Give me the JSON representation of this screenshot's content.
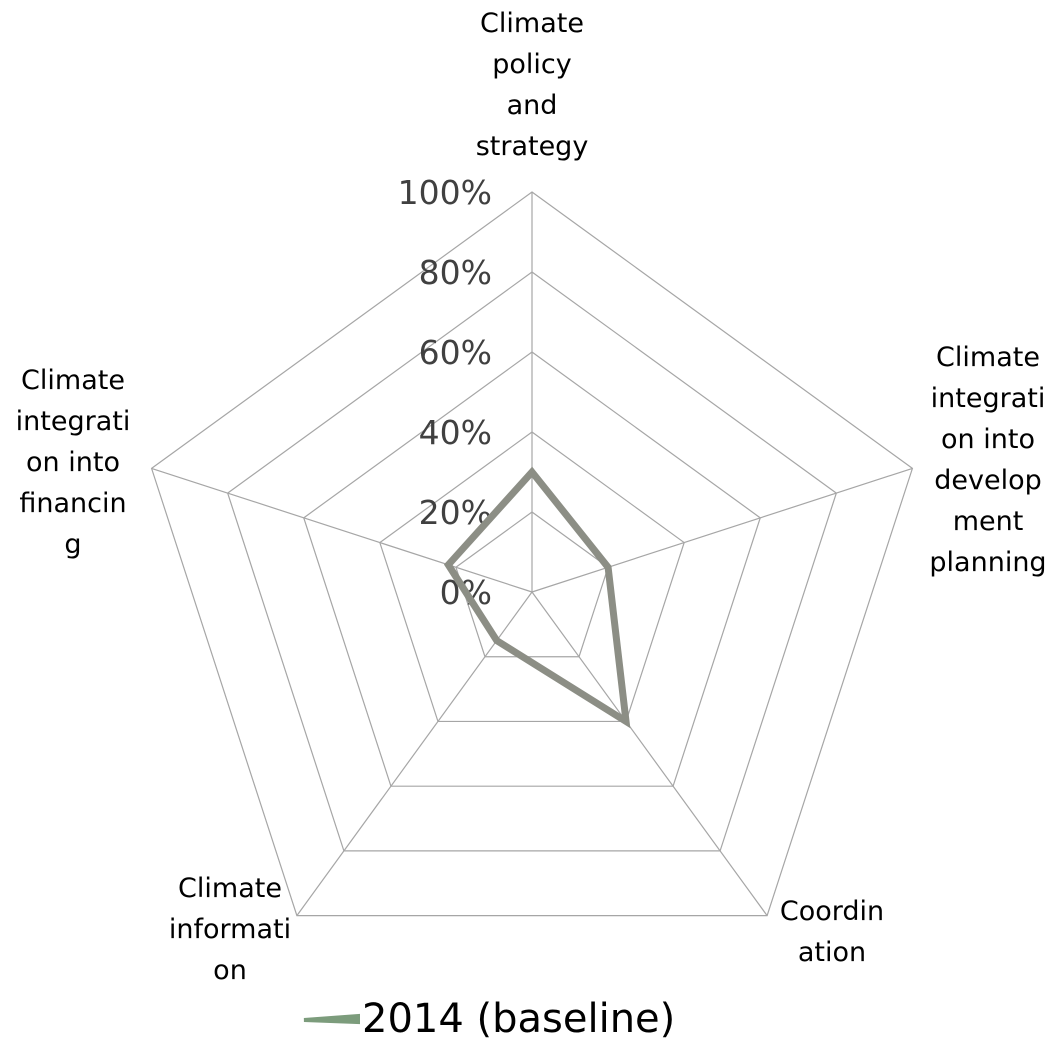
{
  "chart_data": {
    "type": "radar",
    "categories": [
      [
        "Climate",
        "policy",
        "and",
        "strategy"
      ],
      [
        "Climate",
        "integrati",
        "on into",
        "develop",
        "ment",
        "planning"
      ],
      [
        "Coordin",
        "ation"
      ],
      [
        "Climate",
        "informati",
        "on"
      ],
      [
        "Climate",
        "integrati",
        "on into",
        "financin",
        "g"
      ]
    ],
    "ticks": [
      "0%",
      "20%",
      "40%",
      "60%",
      "80%",
      "100%"
    ],
    "ylim": [
      0,
      100
    ],
    "series": [
      {
        "name": "2014 (baseline)",
        "values": [
          30,
          20,
          40,
          15,
          22
        ]
      }
    ],
    "legend": "bottom",
    "colors": {
      "series": "#8c8e85",
      "grid": "#a6a6a6",
      "legend_marker": "#7c9c7c"
    }
  }
}
